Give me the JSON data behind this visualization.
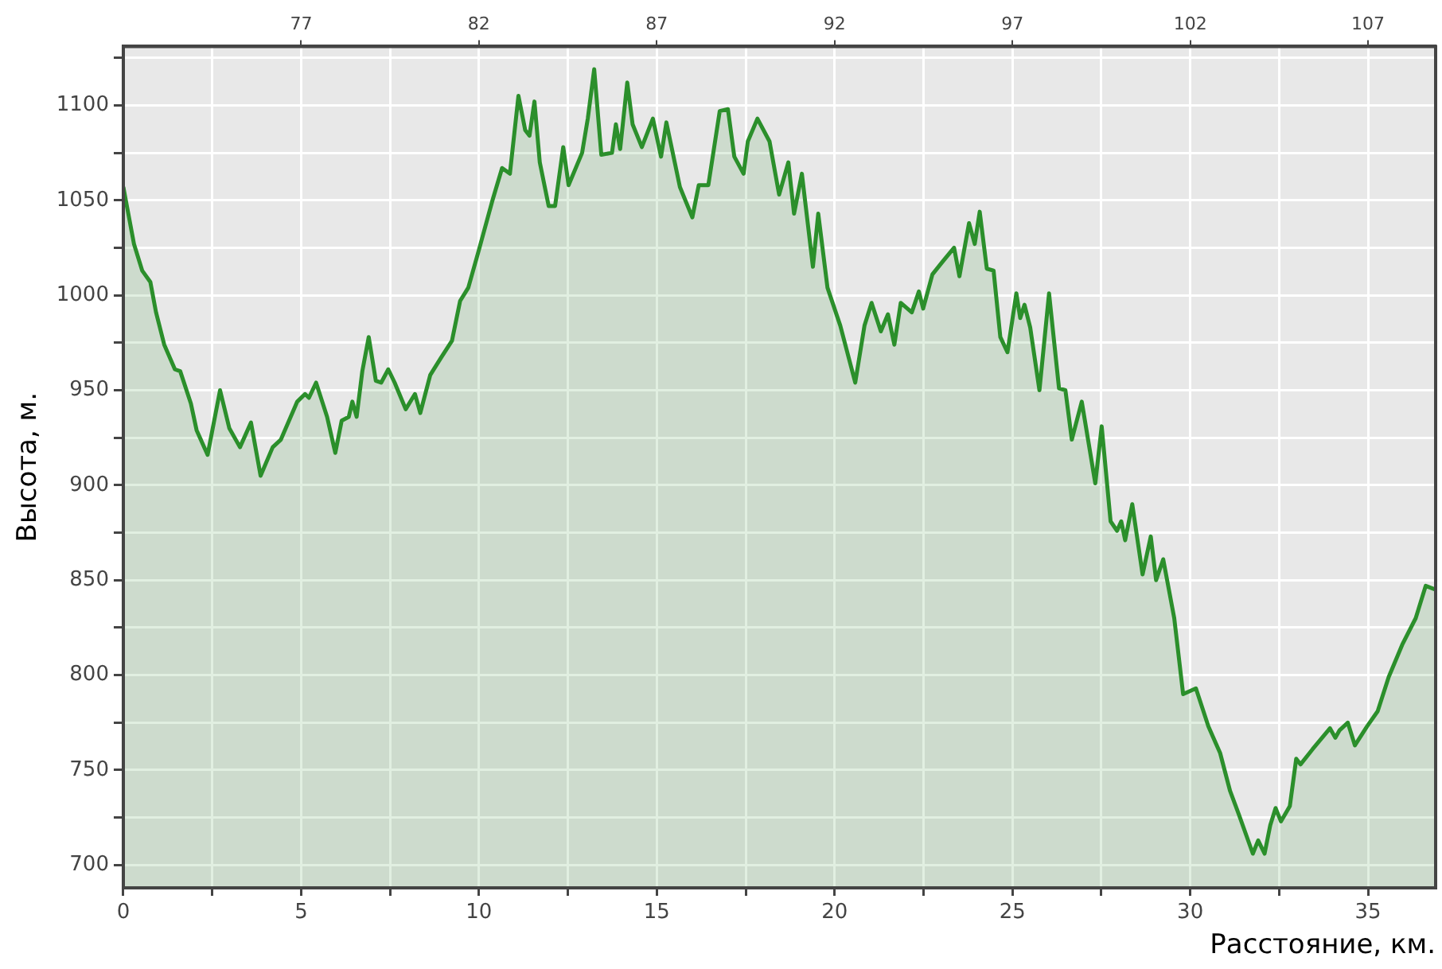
{
  "chart_data": {
    "type": "area",
    "xlabel": "Расстояние, км.",
    "ylabel": "Высота, м.",
    "x": [
      0,
      0.3,
      0.53,
      0.76,
      0.92,
      1.15,
      1.45,
      1.6,
      1.9,
      2.06,
      2.37,
      2.72,
      2.98,
      3.28,
      3.59,
      3.86,
      4.2,
      4.43,
      4.89,
      5.11,
      5.22,
      5.42,
      5.73,
      5.96,
      6.14,
      6.34,
      6.44,
      6.56,
      6.72,
      6.9,
      7.1,
      7.25,
      7.45,
      7.63,
      7.94,
      8.2,
      8.35,
      8.63,
      8.93,
      9.24,
      9.47,
      9.7,
      10,
      10.38,
      10.65,
      10.87,
      11.11,
      11.3,
      11.42,
      11.56,
      11.71,
      11.96,
      12.14,
      12.37,
      12.52,
      12.9,
      13.06,
      13.24,
      13.44,
      13.74,
      13.85,
      13.97,
      14.17,
      14.32,
      14.58,
      14.89,
      15.12,
      15.27,
      15.65,
      16,
      16.18,
      16.45,
      16.77,
      17,
      17.18,
      17.44,
      17.56,
      17.83,
      18.17,
      18.44,
      18.7,
      18.86,
      19.08,
      19.39,
      19.54,
      19.8,
      20.16,
      20.58,
      20.84,
      21.04,
      21.3,
      21.5,
      21.68,
      21.86,
      22.17,
      22.37,
      22.49,
      22.75,
      23.05,
      23.36,
      23.51,
      23.78,
      23.94,
      24.08,
      24.28,
      24.47,
      24.66,
      24.86,
      25.11,
      25.22,
      25.34,
      25.5,
      25.76,
      26.03,
      26.31,
      26.49,
      26.67,
      26.95,
      27.33,
      27.51,
      27.76,
      27.94,
      28.06,
      28.17,
      28.37,
      28.66,
      28.89,
      29.04,
      29.24,
      29.55,
      29.8,
      30.16,
      30.51,
      30.84,
      31.12,
      31.38,
      31.76,
      31.91,
      32.09,
      32.25,
      32.4,
      32.55,
      32.8,
      32.98,
      33.1,
      33.44,
      33.93,
      34.08,
      34.2,
      34.43,
      34.63,
      34.97,
      35.27,
      35.58,
      35.96,
      36.34,
      36.62,
      36.9
    ],
    "series": [
      {
        "color": "#2b8f2b",
        "values": [
          1057,
          1027,
          1013,
          1007,
          991,
          974,
          961,
          960,
          943,
          929,
          916,
          950,
          930,
          920,
          933,
          905,
          920,
          924,
          944,
          948,
          946,
          954,
          936,
          917,
          934,
          936,
          944,
          936,
          960,
          978,
          955,
          954,
          961,
          954,
          940,
          948,
          938,
          958,
          967,
          976,
          997,
          1004,
          1024,
          1050,
          1067,
          1064,
          1105,
          1087,
          1084,
          1102,
          1070,
          1047,
          1047,
          1078,
          1058,
          1075,
          1093,
          1119,
          1074,
          1075,
          1090,
          1077,
          1112,
          1090,
          1078,
          1093,
          1073,
          1091,
          1057,
          1041,
          1058,
          1058,
          1097,
          1098,
          1073,
          1064,
          1081,
          1093,
          1081,
          1053,
          1070,
          1043,
          1064,
          1015,
          1043,
          1004,
          984,
          954,
          984,
          996,
          981,
          990,
          974,
          996,
          991,
          1002,
          993,
          1011,
          1018,
          1025,
          1010,
          1038,
          1027,
          1044,
          1014,
          1013,
          978,
          970,
          1001,
          988,
          995,
          983,
          950,
          1001,
          951,
          950,
          924,
          944,
          901,
          931,
          881,
          876,
          881,
          871,
          890,
          853,
          873,
          850,
          861,
          830,
          790,
          793,
          773,
          759,
          739,
          726,
          706,
          713,
          706,
          721,
          730,
          723,
          731,
          756,
          753,
          761,
          772,
          767,
          771,
          775,
          763,
          773,
          781,
          799,
          816,
          830,
          847,
          845
        ]
      }
    ],
    "xlim": [
      0,
      36.9
    ],
    "xticks": [
      0,
      {
        "value": 2.5,
        "label": null
      },
      5,
      {
        "value": 7.5,
        "label": null
      },
      10,
      {
        "value": 12.5,
        "label": null
      },
      15,
      {
        "value": 17.5,
        "label": null
      },
      20,
      {
        "value": 22.5,
        "label": null
      },
      25,
      {
        "value": 27.5,
        "label": null
      },
      30,
      {
        "value": 32.5,
        "label": null
      },
      35
    ],
    "ylim": [
      688,
      1131
    ],
    "yticks": [
      700,
      {
        "value": 725,
        "label": null
      },
      750,
      {
        "value": 775,
        "label": null
      },
      800,
      {
        "value": 825,
        "label": null
      },
      850,
      {
        "value": 875,
        "label": null
      },
      900,
      {
        "value": 925,
        "label": null
      },
      950,
      {
        "value": 975,
        "label": null
      },
      1000,
      {
        "value": 1025,
        "label": null
      },
      1050,
      {
        "value": 1075,
        "label": null
      },
      1100,
      {
        "value": 1125,
        "label": null
      }
    ],
    "x2lim": [
      72,
      108.9
    ],
    "x2ticks": [
      77,
      82,
      87,
      92,
      97,
      102,
      107
    ],
    "grid": true
  }
}
